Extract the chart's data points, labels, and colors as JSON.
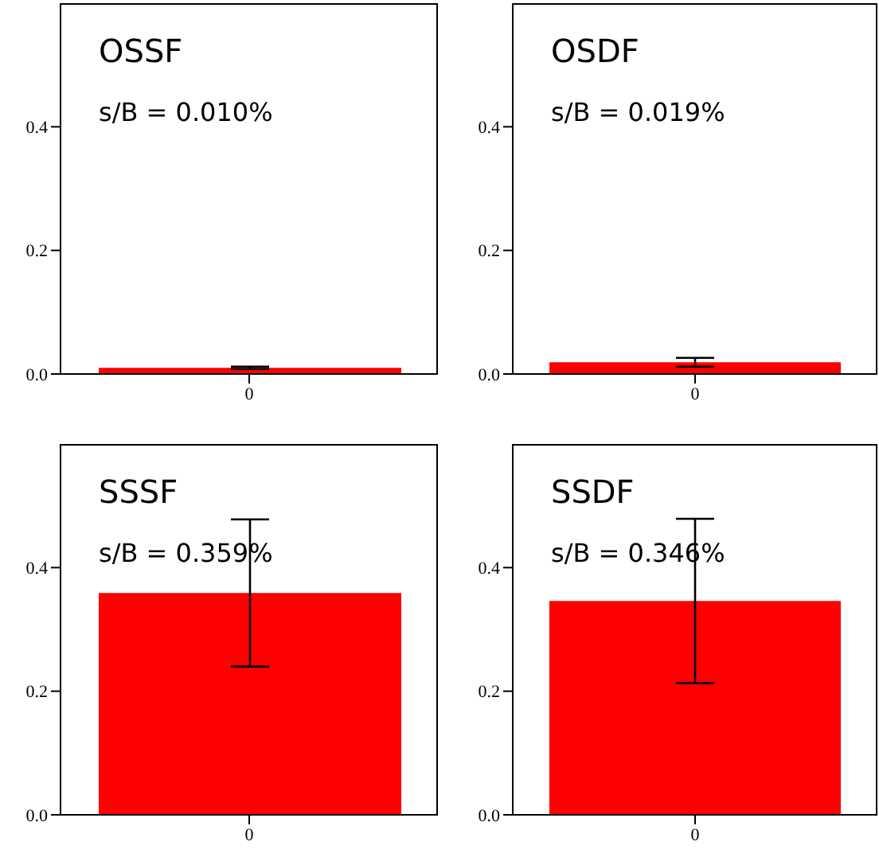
{
  "chart_data": [
    {
      "type": "bar",
      "title": "OSSF",
      "annotations": [
        "s/B = 0.010%"
      ],
      "categories": [
        "0"
      ],
      "values": [
        0.01
      ],
      "errors": [
        0.002
      ],
      "color": "#ff0000",
      "ylim": [
        0,
        0.6
      ],
      "yticks": [
        {
          "value": 0,
          "label": "0.0"
        },
        {
          "value": 0.2,
          "label": "0.2"
        },
        {
          "value": 0.4,
          "label": "0.4"
        }
      ]
    },
    {
      "type": "bar",
      "title": "OSDF",
      "annotations": [
        "s/B = 0.019%"
      ],
      "categories": [
        "0"
      ],
      "values": [
        0.019
      ],
      "errors": [
        0.007
      ],
      "color": "#ff0000",
      "ylim": [
        0,
        0.6
      ],
      "yticks": [
        {
          "value": 0,
          "label": "0.0"
        },
        {
          "value": 0.2,
          "label": "0.2"
        },
        {
          "value": 0.4,
          "label": "0.4"
        }
      ]
    },
    {
      "type": "bar",
      "title": "SSSF",
      "annotations": [
        "s/B = 0.359%"
      ],
      "categories": [
        "0"
      ],
      "values": [
        0.359
      ],
      "errors": [
        0.119
      ],
      "color": "#ff0000",
      "ylim": [
        0,
        0.6
      ],
      "yticks": [
        {
          "value": 0,
          "label": "0.0"
        },
        {
          "value": 0.2,
          "label": "0.2"
        },
        {
          "value": 0.4,
          "label": "0.4"
        }
      ]
    },
    {
      "type": "bar",
      "title": "SSDF",
      "annotations": [
        "s/B = 0.346%"
      ],
      "categories": [
        "0"
      ],
      "values": [
        0.346
      ],
      "errors": [
        0.133
      ],
      "color": "#ff0000",
      "ylim": [
        0,
        0.6
      ],
      "yticks": [
        {
          "value": 0,
          "label": "0.0"
        },
        {
          "value": 0.2,
          "label": "0.2"
        },
        {
          "value": 0.4,
          "label": "0.4"
        }
      ]
    }
  ]
}
